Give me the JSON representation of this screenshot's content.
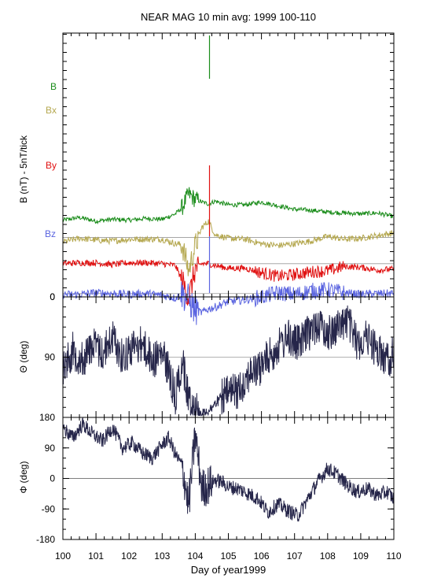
{
  "title": "NEAR MAG 10 min avg: 1999 100-110",
  "xlabel": "Day of year1999",
  "colors": {
    "B": "#1a8c1a",
    "Bx": "#b5a850",
    "By": "#e01010",
    "Bz": "#5a64e0",
    "angle": "#26264a",
    "refline": "#999999"
  },
  "chart_data": [
    {
      "type": "line",
      "panel": "magnetic field components (stacked, offset)",
      "ylabel": "B  (nT) - 5nT/tick",
      "yticks": [
        "0"
      ],
      "xlim": [
        100,
        110
      ],
      "x_ticks": [
        100,
        101,
        102,
        103,
        104,
        105,
        106,
        107,
        108,
        109,
        110
      ],
      "x_tick_labels": [
        "100",
        "101",
        "102",
        "103",
        "104",
        "105",
        "106",
        "107",
        "108",
        "109",
        "110"
      ],
      "series": [
        {
          "name": "B",
          "x": [
            100,
            100.5,
            101,
            101.5,
            102,
            102.5,
            103,
            103.4,
            103.6,
            103.8,
            104,
            104.2,
            104.4,
            104.6,
            105,
            105.5,
            106,
            106.5,
            107,
            107.5,
            108,
            108.5,
            109,
            109.5,
            110
          ],
          "values": [
            7.6,
            7.9,
            7.5,
            7.7,
            7.6,
            7.8,
            7.7,
            8.3,
            9.0,
            10.5,
            9.9,
            9.6,
            9.4,
            9.7,
            9.3,
            9.3,
            9.6,
            9.2,
            8.8,
            8.7,
            8.5,
            8.4,
            8.3,
            8.4,
            8.0
          ]
        },
        {
          "name": "Bx",
          "x": [
            100,
            100.5,
            101,
            101.5,
            102,
            102.5,
            103,
            103.4,
            103.6,
            103.8,
            104,
            104.2,
            104.4,
            104.6,
            105,
            105.5,
            106,
            106.5,
            107,
            107.5,
            108,
            108.5,
            109,
            109.5,
            110
          ],
          "values": [
            5.2,
            5.6,
            5.4,
            5.3,
            5.5,
            5.5,
            5.5,
            5.0,
            4.9,
            2.0,
            4.8,
            6.8,
            7.5,
            6.0,
            5.6,
            5.5,
            5.0,
            4.8,
            5.0,
            5.3,
            5.8,
            5.5,
            5.6,
            5.9,
            6.2
          ]
        },
        {
          "name": "By",
          "x": [
            100,
            100.5,
            101,
            101.5,
            102,
            102.5,
            103,
            103.4,
            103.6,
            103.8,
            104,
            104.2,
            104.4,
            104.6,
            105,
            105.5,
            106,
            106.5,
            107,
            107.5,
            108,
            108.5,
            109,
            109.5,
            110
          ],
          "values": [
            2.8,
            2.9,
            2.9,
            2.7,
            2.9,
            2.9,
            2.8,
            2.6,
            1.0,
            -1.0,
            2.2,
            2.8,
            2.8,
            2.6,
            2.3,
            2.3,
            1.8,
            1.4,
            1.6,
            1.9,
            2.0,
            2.5,
            2.4,
            2.1,
            2.2
          ]
        },
        {
          "name": "Bz",
          "x": [
            100,
            100.5,
            101,
            101.5,
            102,
            102.5,
            103,
            103.4,
            103.6,
            103.8,
            104,
            104.2,
            104.4,
            104.6,
            105,
            105.5,
            106,
            106.5,
            107,
            107.5,
            108,
            108.5,
            109,
            109.5,
            110
          ],
          "values": [
            -0.6,
            -0.6,
            -0.4,
            -0.5,
            -0.6,
            -0.5,
            -0.7,
            -1.0,
            -0.5,
            -1.2,
            -2.4,
            -2.6,
            -2.2,
            -2.0,
            -1.4,
            -1.2,
            -0.9,
            -0.4,
            -0.6,
            -0.2,
            -0.1,
            -0.4,
            -0.6,
            -0.5,
            -0.5
          ]
        }
      ],
      "zero_lines": [
        5.7,
        2.8,
        -0.5
      ]
    },
    {
      "type": "line",
      "panel": "theta",
      "ylabel": "Θ (deg)",
      "ylim": [
        0,
        180
      ],
      "y_inverted": true,
      "y_tick_labels": [
        "0",
        "90",
        "180"
      ],
      "y_ticks": [
        0,
        90,
        180
      ],
      "x": [
        100,
        100.3,
        100.6,
        100.9,
        101.2,
        101.5,
        101.8,
        102.1,
        102.4,
        102.7,
        103.0,
        103.2,
        103.4,
        103.6,
        103.8,
        104.0,
        104.2,
        104.4,
        104.6,
        104.8,
        105.0,
        105.3,
        105.6,
        105.9,
        106.2,
        106.5,
        106.8,
        107.1,
        107.4,
        107.7,
        108.0,
        108.3,
        108.6,
        108.9,
        109.2,
        109.5,
        109.8,
        110
      ],
      "values": [
        105,
        80,
        95,
        70,
        85,
        60,
        90,
        75,
        70,
        95,
        85,
        110,
        150,
        95,
        150,
        165,
        175,
        170,
        160,
        150,
        145,
        140,
        115,
        110,
        90,
        75,
        60,
        70,
        55,
        40,
        55,
        45,
        35,
        70,
        60,
        80,
        95,
        85
      ]
    },
    {
      "type": "line",
      "panel": "phi",
      "ylabel": "Φ (deg)",
      "ylim": [
        -180,
        180
      ],
      "y_tick_labels": [
        "180",
        "90",
        "0",
        "-90",
        "-180"
      ],
      "y_ticks": [
        180,
        90,
        0,
        -90,
        -180
      ],
      "x": [
        100,
        100.3,
        100.6,
        100.9,
        101.2,
        101.5,
        101.8,
        102.1,
        102.4,
        102.7,
        103.0,
        103.2,
        103.4,
        103.6,
        103.8,
        104.0,
        104.2,
        104.4,
        104.6,
        104.8,
        105.0,
        105.3,
        105.6,
        105.9,
        106.2,
        106.5,
        106.8,
        107.1,
        107.4,
        107.7,
        108.0,
        108.3,
        108.6,
        108.9,
        109.2,
        109.5,
        109.8,
        110
      ],
      "values": [
        150,
        120,
        160,
        130,
        110,
        150,
        90,
        105,
        75,
        60,
        100,
        120,
        70,
        40,
        -80,
        130,
        -30,
        -20,
        -5,
        -10,
        -25,
        -30,
        -45,
        -60,
        -100,
        -75,
        -95,
        -110,
        -60,
        -10,
        30,
        10,
        -20,
        -40,
        -30,
        -50,
        -40,
        -60
      ]
    }
  ]
}
